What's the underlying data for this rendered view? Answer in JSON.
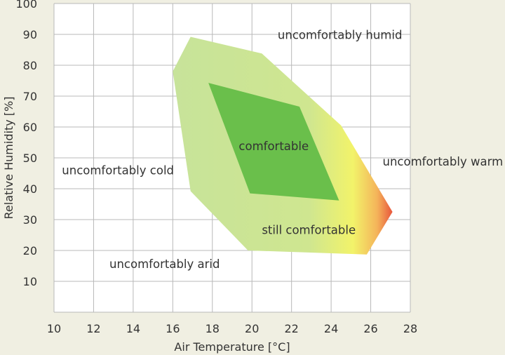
{
  "chart_data": {
    "type": "area",
    "title": "",
    "xlabel": "Air Temperature [°C]",
    "ylabel": "Relative Humidity [%]",
    "xlim": [
      10,
      28
    ],
    "ylim": [
      0,
      100
    ],
    "x_ticks": [
      10,
      12,
      14,
      16,
      18,
      20,
      22,
      24,
      26,
      28
    ],
    "y_ticks": [
      10,
      20,
      30,
      40,
      50,
      60,
      70,
      80,
      90,
      100
    ],
    "grid": true,
    "regions": [
      {
        "label": "still comfortable",
        "color": "#c5e29a",
        "gradient_colors": [
          "#c5e29a",
          "#f0f26c",
          "#e8553c"
        ],
        "polygon": [
          [
            16.9,
            89.2
          ],
          [
            20.5,
            83.8
          ],
          [
            24.5,
            60.5
          ],
          [
            27.1,
            32.5
          ],
          [
            25.8,
            18.7
          ],
          [
            19.8,
            20.0
          ],
          [
            16.9,
            39.2
          ],
          [
            16.0,
            78.0
          ]
        ]
      },
      {
        "label": "comfortable",
        "color": "#6abf4b",
        "polygon": [
          [
            17.8,
            74.3
          ],
          [
            22.4,
            66.6
          ],
          [
            24.4,
            36.2
          ],
          [
            19.9,
            38.5
          ]
        ]
      }
    ],
    "annotations": [
      {
        "text": "uncomfortably humid",
        "x": 21.3,
        "y": 88.5
      },
      {
        "text": "uncomfortably cold",
        "x": 10.4,
        "y": 44.7
      },
      {
        "text": "uncomfortably warm",
        "x": 26.6,
        "y": 47.5
      },
      {
        "text": "uncomfortably arid",
        "x": 12.8,
        "y": 14.3
      }
    ]
  }
}
